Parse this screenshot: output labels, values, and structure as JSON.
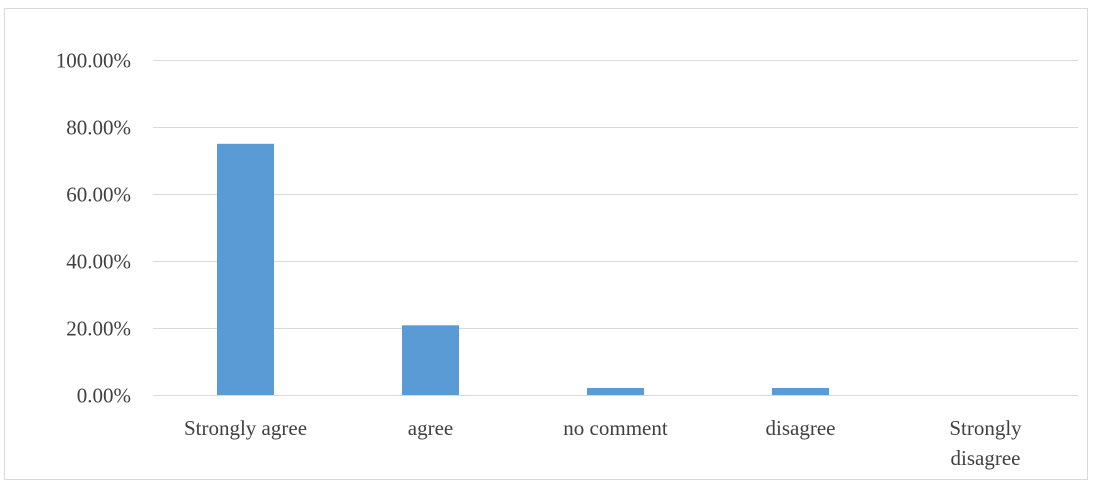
{
  "chart_data": {
    "type": "bar",
    "categories": [
      "Strongly agree",
      "agree",
      "no comment",
      "disagree",
      "Strongly disagree"
    ],
    "category_label_lines": [
      [
        "Strongly agree"
      ],
      [
        "agree"
      ],
      [
        "no comment"
      ],
      [
        "disagree"
      ],
      [
        "Strongly",
        "disagree"
      ]
    ],
    "values": [
      75.0,
      20.8,
      2.1,
      2.1,
      0.0
    ],
    "title": "",
    "xlabel": "",
    "ylabel": "",
    "ylim": [
      0,
      100
    ],
    "yticks": [
      0,
      20,
      40,
      60,
      80,
      100
    ],
    "ytick_labels": [
      "0.00%",
      "20.00%",
      "40.00%",
      "60.00%",
      "80.00%",
      "100.00%"
    ],
    "grid": true,
    "legend": "none",
    "bar_color": "#5B9BD5",
    "grid_color": "#D9D9D9",
    "axis_color": "#D9D9D9",
    "text_color": "#404040"
  }
}
